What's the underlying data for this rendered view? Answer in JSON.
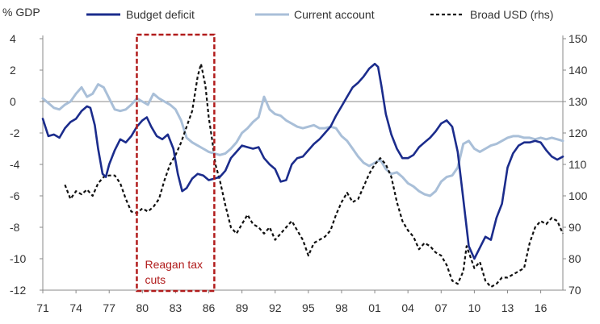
{
  "chart_data": {
    "type": "line",
    "y_unit_label": "% GDP",
    "x_ticks": [
      "71",
      "74",
      "77",
      "80",
      "83",
      "86",
      "89",
      "92",
      "95",
      "98",
      "01",
      "04",
      "07",
      "10",
      "13",
      "16"
    ],
    "x_tick_years": [
      1971,
      1974,
      1977,
      1980,
      1983,
      1986,
      1989,
      1992,
      1995,
      1998,
      2001,
      2004,
      2007,
      2010,
      2013,
      2016
    ],
    "xlim": [
      1971,
      2018
    ],
    "ylim_left": [
      -12,
      4
    ],
    "yticks_left": [
      4,
      2,
      0,
      -2,
      -4,
      -6,
      -8,
      -10,
      -12
    ],
    "ylim_right": [
      70,
      150
    ],
    "yticks_right": [
      150,
      140,
      130,
      120,
      110,
      100,
      90,
      80,
      70
    ],
    "grid": false,
    "legend_position": "top",
    "annotation": {
      "text_lines": [
        "Reagan tax",
        "cuts"
      ],
      "x_range": [
        1979.5,
        1986.5
      ]
    },
    "series": [
      {
        "name": "Budget deficit",
        "axis": "left",
        "color": "#1b2c8c",
        "style": "solid",
        "points": [
          [
            1971.0,
            -1.1
          ],
          [
            1971.5,
            -2.2
          ],
          [
            1972.0,
            -2.1
          ],
          [
            1972.5,
            -2.3
          ],
          [
            1973.0,
            -1.7
          ],
          [
            1973.5,
            -1.3
          ],
          [
            1974.0,
            -1.1
          ],
          [
            1974.5,
            -0.6
          ],
          [
            1975.0,
            -0.3
          ],
          [
            1975.3,
            -0.4
          ],
          [
            1975.7,
            -1.5
          ],
          [
            1976.0,
            -3.0
          ],
          [
            1976.4,
            -4.6
          ],
          [
            1976.7,
            -4.8
          ],
          [
            1977.0,
            -4.0
          ],
          [
            1977.5,
            -3.1
          ],
          [
            1978.0,
            -2.4
          ],
          [
            1978.5,
            -2.6
          ],
          [
            1979.0,
            -2.2
          ],
          [
            1979.5,
            -1.6
          ],
          [
            1980.0,
            -1.2
          ],
          [
            1980.4,
            -1.0
          ],
          [
            1980.8,
            -1.6
          ],
          [
            1981.3,
            -2.2
          ],
          [
            1981.8,
            -2.4
          ],
          [
            1982.3,
            -2.1
          ],
          [
            1982.8,
            -3.0
          ],
          [
            1983.2,
            -4.6
          ],
          [
            1983.6,
            -5.7
          ],
          [
            1984.0,
            -5.5
          ],
          [
            1984.5,
            -4.9
          ],
          [
            1985.0,
            -4.6
          ],
          [
            1985.5,
            -4.7
          ],
          [
            1986.0,
            -5.0
          ],
          [
            1986.5,
            -4.9
          ],
          [
            1987.0,
            -4.8
          ],
          [
            1987.5,
            -4.4
          ],
          [
            1988.0,
            -3.6
          ],
          [
            1988.5,
            -3.2
          ],
          [
            1989.0,
            -2.8
          ],
          [
            1989.5,
            -2.9
          ],
          [
            1990.0,
            -3.0
          ],
          [
            1990.5,
            -2.9
          ],
          [
            1991.0,
            -3.6
          ],
          [
            1991.5,
            -4.0
          ],
          [
            1992.0,
            -4.3
          ],
          [
            1992.5,
            -5.1
          ],
          [
            1993.0,
            -5.0
          ],
          [
            1993.5,
            -4.0
          ],
          [
            1994.0,
            -3.6
          ],
          [
            1994.5,
            -3.5
          ],
          [
            1995.0,
            -3.1
          ],
          [
            1995.5,
            -2.7
          ],
          [
            1996.0,
            -2.4
          ],
          [
            1996.5,
            -2.0
          ],
          [
            1997.0,
            -1.6
          ],
          [
            1997.5,
            -0.9
          ],
          [
            1998.0,
            -0.3
          ],
          [
            1998.5,
            0.3
          ],
          [
            1999.0,
            0.9
          ],
          [
            1999.5,
            1.2
          ],
          [
            2000.0,
            1.6
          ],
          [
            2000.5,
            2.1
          ],
          [
            2001.0,
            2.4
          ],
          [
            2001.3,
            2.2
          ],
          [
            2001.6,
            1.0
          ],
          [
            2002.0,
            -0.8
          ],
          [
            2002.5,
            -2.1
          ],
          [
            2003.0,
            -3.0
          ],
          [
            2003.5,
            -3.6
          ],
          [
            2004.0,
            -3.6
          ],
          [
            2004.5,
            -3.4
          ],
          [
            2005.0,
            -2.9
          ],
          [
            2005.5,
            -2.6
          ],
          [
            2006.0,
            -2.3
          ],
          [
            2006.5,
            -1.9
          ],
          [
            2007.0,
            -1.4
          ],
          [
            2007.5,
            -1.2
          ],
          [
            2008.0,
            -1.6
          ],
          [
            2008.5,
            -3.2
          ],
          [
            2009.0,
            -6.2
          ],
          [
            2009.5,
            -9.2
          ],
          [
            2010.0,
            -10.0
          ],
          [
            2010.5,
            -9.3
          ],
          [
            2011.0,
            -8.6
          ],
          [
            2011.5,
            -8.8
          ],
          [
            2012.0,
            -7.4
          ],
          [
            2012.5,
            -6.5
          ],
          [
            2013.0,
            -4.2
          ],
          [
            2013.5,
            -3.3
          ],
          [
            2014.0,
            -2.8
          ],
          [
            2014.5,
            -2.6
          ],
          [
            2015.0,
            -2.6
          ],
          [
            2015.5,
            -2.5
          ],
          [
            2016.0,
            -2.6
          ],
          [
            2016.5,
            -3.1
          ],
          [
            2017.0,
            -3.5
          ],
          [
            2017.5,
            -3.7
          ],
          [
            2018.0,
            -3.5
          ]
        ]
      },
      {
        "name": "Current account",
        "axis": "left",
        "color": "#a9bfd8",
        "style": "solid",
        "points": [
          [
            1971.0,
            0.2
          ],
          [
            1971.5,
            -0.1
          ],
          [
            1972.0,
            -0.4
          ],
          [
            1972.5,
            -0.5
          ],
          [
            1973.0,
            -0.2
          ],
          [
            1973.5,
            0.0
          ],
          [
            1974.0,
            0.5
          ],
          [
            1974.5,
            0.9
          ],
          [
            1975.0,
            0.3
          ],
          [
            1975.5,
            0.5
          ],
          [
            1976.0,
            1.1
          ],
          [
            1976.5,
            0.9
          ],
          [
            1977.0,
            0.2
          ],
          [
            1977.5,
            -0.5
          ],
          [
            1978.0,
            -0.6
          ],
          [
            1978.5,
            -0.5
          ],
          [
            1979.0,
            -0.2
          ],
          [
            1979.5,
            0.2
          ],
          [
            1980.0,
            0.0
          ],
          [
            1980.5,
            -0.2
          ],
          [
            1981.0,
            0.5
          ],
          [
            1981.5,
            0.2
          ],
          [
            1982.0,
            0.0
          ],
          [
            1982.5,
            -0.2
          ],
          [
            1983.0,
            -0.5
          ],
          [
            1983.5,
            -1.2
          ],
          [
            1984.0,
            -2.3
          ],
          [
            1984.5,
            -2.6
          ],
          [
            1985.0,
            -2.8
          ],
          [
            1985.5,
            -3.0
          ],
          [
            1986.0,
            -3.2
          ],
          [
            1986.5,
            -3.3
          ],
          [
            1987.0,
            -3.4
          ],
          [
            1987.5,
            -3.3
          ],
          [
            1988.0,
            -3.0
          ],
          [
            1988.5,
            -2.6
          ],
          [
            1989.0,
            -2.0
          ],
          [
            1989.5,
            -1.7
          ],
          [
            1990.0,
            -1.3
          ],
          [
            1990.5,
            -1.0
          ],
          [
            1991.0,
            0.3
          ],
          [
            1991.5,
            -0.5
          ],
          [
            1992.0,
            -0.8
          ],
          [
            1992.5,
            -0.9
          ],
          [
            1993.0,
            -1.2
          ],
          [
            1993.5,
            -1.4
          ],
          [
            1994.0,
            -1.6
          ],
          [
            1994.5,
            -1.7
          ],
          [
            1995.0,
            -1.6
          ],
          [
            1995.5,
            -1.5
          ],
          [
            1996.0,
            -1.7
          ],
          [
            1996.5,
            -1.7
          ],
          [
            1997.0,
            -1.6
          ],
          [
            1997.5,
            -1.7
          ],
          [
            1998.0,
            -2.2
          ],
          [
            1998.5,
            -2.5
          ],
          [
            1999.0,
            -3.0
          ],
          [
            1999.5,
            -3.5
          ],
          [
            2000.0,
            -3.9
          ],
          [
            2000.5,
            -4.1
          ],
          [
            2001.0,
            -3.9
          ],
          [
            2001.5,
            -3.7
          ],
          [
            2002.0,
            -4.3
          ],
          [
            2002.5,
            -4.6
          ],
          [
            2003.0,
            -4.5
          ],
          [
            2003.5,
            -4.8
          ],
          [
            2004.0,
            -5.2
          ],
          [
            2004.5,
            -5.4
          ],
          [
            2005.0,
            -5.7
          ],
          [
            2005.5,
            -5.9
          ],
          [
            2006.0,
            -6.0
          ],
          [
            2006.5,
            -5.7
          ],
          [
            2007.0,
            -5.1
          ],
          [
            2007.5,
            -4.8
          ],
          [
            2008.0,
            -4.7
          ],
          [
            2008.5,
            -4.2
          ],
          [
            2009.0,
            -2.7
          ],
          [
            2009.5,
            -2.5
          ],
          [
            2010.0,
            -3.0
          ],
          [
            2010.5,
            -3.2
          ],
          [
            2011.0,
            -3.0
          ],
          [
            2011.5,
            -2.8
          ],
          [
            2012.0,
            -2.7
          ],
          [
            2012.5,
            -2.5
          ],
          [
            2013.0,
            -2.3
          ],
          [
            2013.5,
            -2.2
          ],
          [
            2014.0,
            -2.2
          ],
          [
            2014.5,
            -2.3
          ],
          [
            2015.0,
            -2.3
          ],
          [
            2015.5,
            -2.4
          ],
          [
            2016.0,
            -2.3
          ],
          [
            2016.5,
            -2.4
          ],
          [
            2017.0,
            -2.3
          ],
          [
            2017.5,
            -2.4
          ],
          [
            2018.0,
            -2.5
          ]
        ]
      },
      {
        "name": "Broad USD (rhs)",
        "axis": "right",
        "color": "#111111",
        "style": "dashed",
        "points": [
          [
            1973.0,
            103.5
          ],
          [
            1973.5,
            99.0
          ],
          [
            1974.0,
            101.5
          ],
          [
            1974.5,
            100.5
          ],
          [
            1975.0,
            102.0
          ],
          [
            1975.5,
            100.0
          ],
          [
            1976.0,
            104.0
          ],
          [
            1976.5,
            106.0
          ],
          [
            1977.0,
            106.5
          ],
          [
            1977.5,
            106.5
          ],
          [
            1978.0,
            104.0
          ],
          [
            1978.5,
            99.0
          ],
          [
            1979.0,
            95.0
          ],
          [
            1979.5,
            94.5
          ],
          [
            1980.0,
            96.0
          ],
          [
            1980.5,
            95.0
          ],
          [
            1981.0,
            96.5
          ],
          [
            1981.5,
            99.0
          ],
          [
            1982.0,
            105.0
          ],
          [
            1982.5,
            110.0
          ],
          [
            1983.0,
            113.0
          ],
          [
            1983.5,
            117.0
          ],
          [
            1984.0,
            122.0
          ],
          [
            1984.5,
            127.0
          ],
          [
            1985.0,
            138.0
          ],
          [
            1985.3,
            142.0
          ],
          [
            1985.7,
            135.0
          ],
          [
            1986.0,
            125.0
          ],
          [
            1986.3,
            118.0
          ],
          [
            1986.6,
            110.0
          ],
          [
            1987.0,
            105.0
          ],
          [
            1987.5,
            97.0
          ],
          [
            1988.0,
            90.0
          ],
          [
            1988.5,
            88.0
          ],
          [
            1989.0,
            91.0
          ],
          [
            1989.5,
            94.0
          ],
          [
            1990.0,
            91.0
          ],
          [
            1990.5,
            90.0
          ],
          [
            1991.0,
            88.0
          ],
          [
            1991.5,
            90.0
          ],
          [
            1992.0,
            86.0
          ],
          [
            1992.5,
            88.0
          ],
          [
            1993.0,
            90.0
          ],
          [
            1993.5,
            92.0
          ],
          [
            1994.0,
            89.0
          ],
          [
            1994.5,
            86.0
          ],
          [
            1995.0,
            81.0
          ],
          [
            1995.5,
            85.0
          ],
          [
            1996.0,
            86.0
          ],
          [
            1996.5,
            87.0
          ],
          [
            1997.0,
            89.0
          ],
          [
            1997.5,
            94.0
          ],
          [
            1998.0,
            98.0
          ],
          [
            1998.5,
            101.0
          ],
          [
            1999.0,
            98.0
          ],
          [
            1999.5,
            99.0
          ],
          [
            2000.0,
            103.0
          ],
          [
            2000.5,
            107.0
          ],
          [
            2001.0,
            110.0
          ],
          [
            2001.5,
            112.0
          ],
          [
            2002.0,
            110.0
          ],
          [
            2002.5,
            106.0
          ],
          [
            2003.0,
            98.0
          ],
          [
            2003.5,
            92.0
          ],
          [
            2004.0,
            89.0
          ],
          [
            2004.5,
            87.0
          ],
          [
            2005.0,
            83.0
          ],
          [
            2005.5,
            85.0
          ],
          [
            2006.0,
            84.0
          ],
          [
            2006.5,
            82.0
          ],
          [
            2007.0,
            81.0
          ],
          [
            2007.5,
            78.0
          ],
          [
            2008.0,
            73.0
          ],
          [
            2008.5,
            72.0
          ],
          [
            2009.0,
            76.0
          ],
          [
            2009.3,
            84.0
          ],
          [
            2009.7,
            80.0
          ],
          [
            2010.0,
            77.0
          ],
          [
            2010.5,
            79.0
          ],
          [
            2011.0,
            73.0
          ],
          [
            2011.5,
            71.0
          ],
          [
            2012.0,
            72.0
          ],
          [
            2012.5,
            74.0
          ],
          [
            2013.0,
            74.0
          ],
          [
            2013.5,
            75.0
          ],
          [
            2014.0,
            76.0
          ],
          [
            2014.5,
            77.0
          ],
          [
            2015.0,
            85.0
          ],
          [
            2015.5,
            90.0
          ],
          [
            2016.0,
            92.0
          ],
          [
            2016.5,
            91.0
          ],
          [
            2017.0,
            93.0
          ],
          [
            2017.5,
            92.0
          ],
          [
            2018.0,
            88.0
          ]
        ]
      }
    ]
  }
}
